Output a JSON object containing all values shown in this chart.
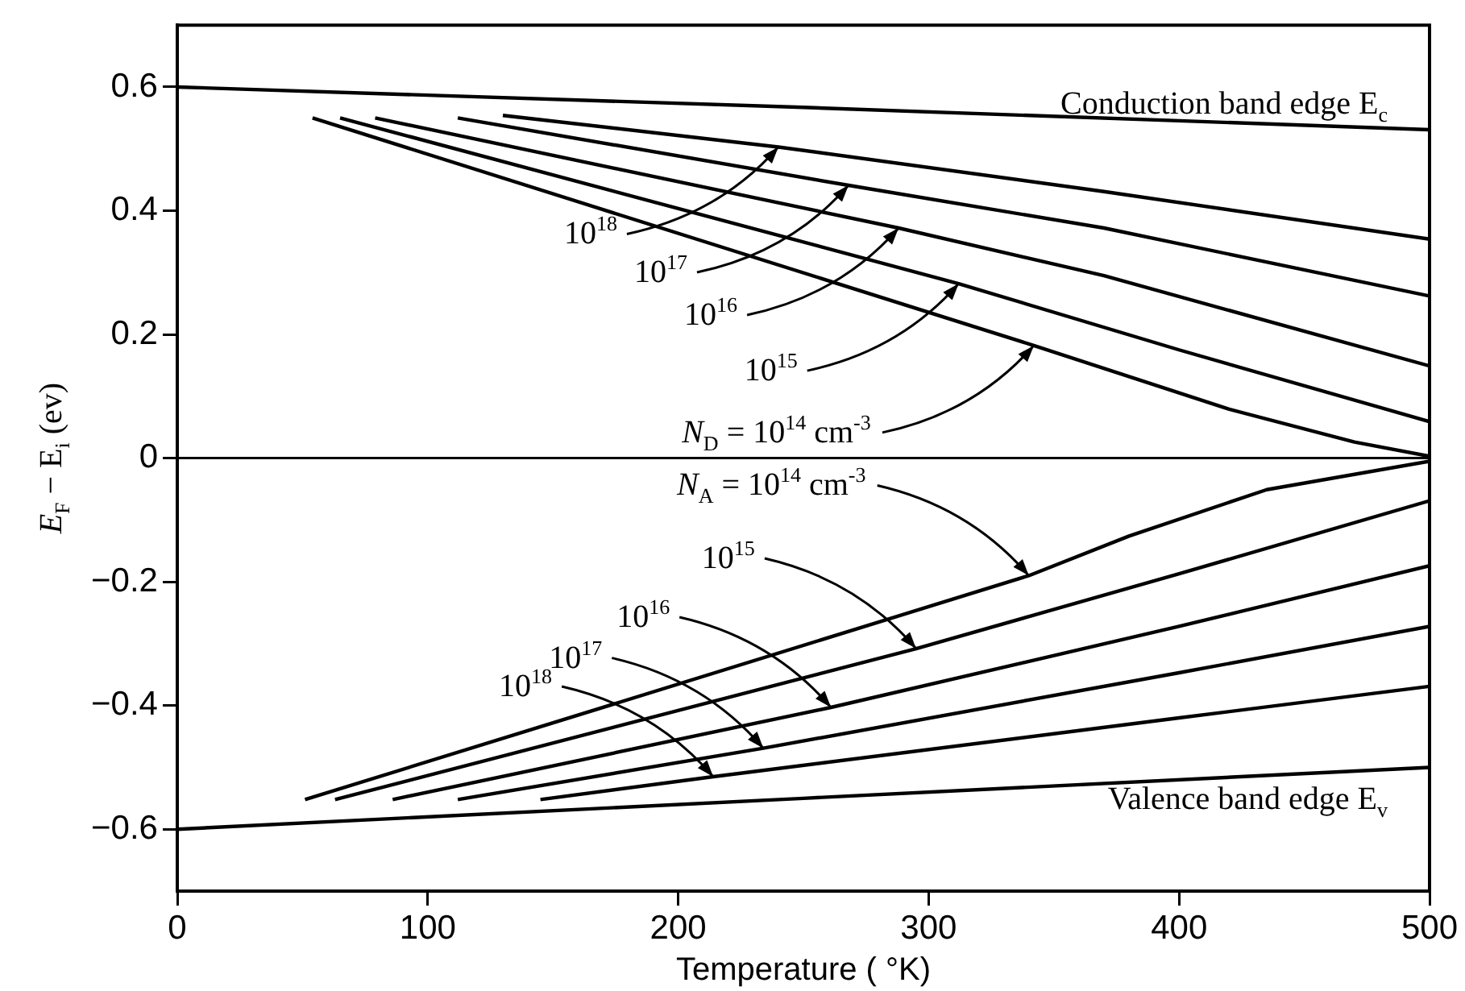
{
  "chart_data": {
    "type": "line",
    "xlabel": "Temperature ( °K)",
    "ylabel": "E$_{F}$ − E$_{i}$ (ev)",
    "xlim": [
      0,
      500
    ],
    "ylim": [
      -0.7,
      0.7
    ],
    "xticks": [
      0,
      100,
      200,
      300,
      400,
      500
    ],
    "yticks": [
      -0.6,
      -0.4,
      -0.2,
      0,
      0.2,
      0.4,
      0.6
    ],
    "line_style": "solid",
    "series": [
      {
        "color": "#000000",
        "x": [
          0,
          250,
          500
        ],
        "values": [
          0.6,
          0.567,
          0.531
        ]
      },
      {
        "color": "#000000",
        "x": [
          130,
          240,
          370,
          500
        ],
        "values": [
          0.554,
          0.503,
          0.431,
          0.354
        ]
      },
      {
        "color": "#000000",
        "x": [
          112,
          268,
          370,
          500
        ],
        "values": [
          0.55,
          0.441,
          0.372,
          0.262
        ]
      },
      {
        "color": "#000000",
        "x": [
          79,
          288,
          370,
          500
        ],
        "values": [
          0.55,
          0.372,
          0.295,
          0.149
        ]
      },
      {
        "color": "#000000",
        "x": [
          65,
          312,
          400,
          500
        ],
        "values": [
          0.55,
          0.282,
          0.175,
          0.059
        ]
      },
      {
        "color": "#000000",
        "x": [
          54,
          342,
          420,
          470,
          500
        ],
        "values": [
          0.55,
          0.182,
          0.079,
          0.026,
          0.003
        ]
      },
      {
        "color": "#000000",
        "x": [
          51,
          340,
          380,
          435,
          500
        ],
        "values": [
          -0.552,
          -0.19,
          -0.126,
          -0.051,
          -0.005
        ]
      },
      {
        "color": "#000000",
        "x": [
          63,
          295,
          400,
          500
        ],
        "values": [
          -0.552,
          -0.308,
          -0.187,
          -0.069
        ]
      },
      {
        "color": "#000000",
        "x": [
          86,
          261,
          400,
          500
        ],
        "values": [
          -0.552,
          -0.403,
          -0.272,
          -0.174
        ]
      },
      {
        "color": "#000000",
        "x": [
          112,
          234,
          400,
          500
        ],
        "values": [
          -0.552,
          -0.469,
          -0.347,
          -0.272
        ]
      },
      {
        "color": "#000000",
        "x": [
          145,
          214,
          400,
          500
        ],
        "values": [
          -0.552,
          -0.515,
          -0.42,
          -0.369
        ]
      },
      {
        "color": "#000000",
        "x": [
          0,
          250,
          500
        ],
        "values": [
          -0.6,
          -0.55,
          -0.5
        ]
      }
    ],
    "ref_lines": [
      {
        "axis": "y",
        "value": 0,
        "color": "#000000"
      }
    ],
    "annotations": [
      {
        "text": "Conduction band edge E$_{c}$",
        "x": 500,
        "y": 0.531
      },
      {
        "text": "10$^{18}$",
        "x": 240,
        "y": 0.503
      },
      {
        "text": "10$^{17}$",
        "x": 268,
        "y": 0.441
      },
      {
        "text": "10$^{16}$",
        "x": 288,
        "y": 0.372
      },
      {
        "text": "10$^{15}$",
        "x": 312,
        "y": 0.282
      },
      {
        "text": "N$_{D}$ = 10$^{14}$ cm$^{-3}$",
        "x": 342,
        "y": 0.182
      },
      {
        "text": "N$_{A}$ = 10$^{14}$ cm$^{-3}$",
        "x": 340,
        "y": -0.19
      },
      {
        "text": "10$^{15}$",
        "x": 295,
        "y": -0.308
      },
      {
        "text": "10$^{16}$",
        "x": 261,
        "y": -0.403
      },
      {
        "text": "10$^{17}$",
        "x": 234,
        "y": -0.469
      },
      {
        "text": "10$^{18}$",
        "x": 214,
        "y": -0.515
      },
      {
        "text": "Valence band edge E$_{v}$",
        "x": 500,
        "y": -0.5
      }
    ]
  }
}
